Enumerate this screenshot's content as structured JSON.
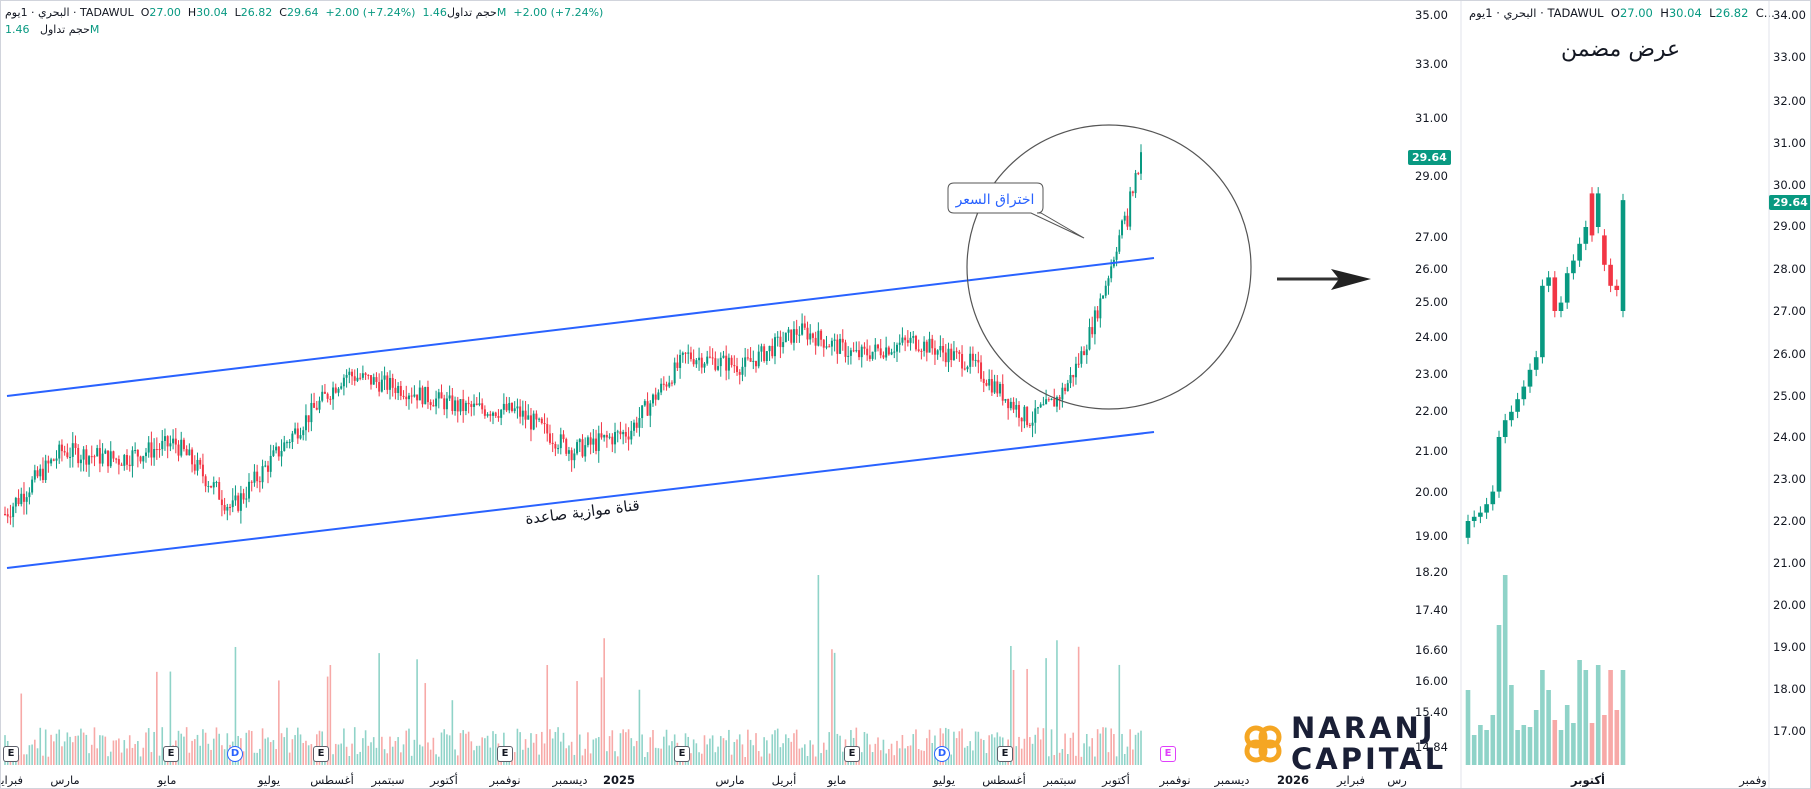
{
  "main_legend": {
    "symbol": "البحري · 1يوم · TADAWUL",
    "open_label": "O",
    "open": "27.00",
    "high_label": "H",
    "high": "30.04",
    "low_label": "L",
    "low": "26.82",
    "close_label": "C",
    "close": "29.64",
    "change": "+2.00 (+7.24%)",
    "volume_label": "حجم تداول",
    "volume_value": "1.46M",
    "volume_change": "+2.00 (+7.24%)"
  },
  "main_volume_line": {
    "label": "حجم تداول",
    "value": "1.46M"
  },
  "inset_legend": {
    "symbol": "البحري · 1يوم · TADAWUL",
    "open_label": "O",
    "open": "27.00",
    "high_label": "H",
    "high": "30.04",
    "low_label": "L",
    "low": "26.82",
    "close_label": "C..."
  },
  "inset_title": "عرض مضمن",
  "annotations": {
    "channel_label": "قناة موازية صاعدة",
    "breakout_label": "اختراق السعر"
  },
  "main_price_tag": "29.64",
  "inset_price_tag": "29.64",
  "main_y_ticks": [
    "35.00",
    "33.00",
    "31.00",
    "29.00",
    "27.00",
    "26.00",
    "25.00",
    "24.00",
    "23.00",
    "22.00",
    "21.00",
    "20.00",
    "19.00",
    "18.20",
    "17.40",
    "16.60",
    "16.00",
    "15.40",
    "14.84"
  ],
  "main_x_ticks": [
    "فبراير",
    "مارس",
    "مايو",
    "يوليو",
    "أغسطس",
    "سبتمبر",
    "أكتوبر",
    "نوفمبر",
    "ديسمبر",
    "2025",
    "مارس",
    "أبريل",
    "مايو",
    "يوليو",
    "أغسطس",
    "سبتمبر",
    "أكتوبر",
    "نوفمبر",
    "ديسمبر",
    "2026",
    "فبراير",
    "رس"
  ],
  "inset_y_ticks": [
    "34.00",
    "33.00",
    "32.00",
    "31.00",
    "30.00",
    "29.00",
    "28.00",
    "27.00",
    "26.00",
    "25.00",
    "24.00",
    "23.00",
    "22.00",
    "21.00",
    "20.00",
    "19.00",
    "18.00",
    "17.00"
  ],
  "inset_x_ticks": [
    "أكتوبر",
    "وفمبر"
  ],
  "event_markers": [
    "E",
    "E",
    "D",
    "E",
    "E",
    "E",
    "E",
    "D",
    "E",
    "E"
  ],
  "logo": {
    "line1": "NARANJ",
    "line2": "CAPITAL"
  },
  "colors": {
    "up": "#089981",
    "down": "#f23645",
    "line": "#2962ff",
    "vol_up": "#8fd3c8",
    "vol_down": "#f7a9a7"
  },
  "icons": [
    "arrow-right-icon",
    "naranj-logo-icon",
    "earnings-icon",
    "dividend-icon"
  ],
  "chart_data": {
    "type": "candlestick",
    "main_series_close_approx": [
      {
        "x": "2024-02",
        "y": 19.5
      },
      {
        "x": "2024-03",
        "y": 21.0
      },
      {
        "x": "2024-04",
        "y": 20.8
      },
      {
        "x": "2024-05",
        "y": 21.2
      },
      {
        "x": "2024-06",
        "y": 19.6
      },
      {
        "x": "2024-07",
        "y": 21.3
      },
      {
        "x": "2024-08",
        "y": 23.0
      },
      {
        "x": "2024-09",
        "y": 22.6
      },
      {
        "x": "2024-10",
        "y": 22.1
      },
      {
        "x": "2024-11",
        "y": 22.0
      },
      {
        "x": "2024-12",
        "y": 21.0
      },
      {
        "x": "2025-01",
        "y": 21.5
      },
      {
        "x": "2025-02",
        "y": 23.5
      },
      {
        "x": "2025-03",
        "y": 23.2
      },
      {
        "x": "2025-04",
        "y": 24.2
      },
      {
        "x": "2025-05",
        "y": 23.5
      },
      {
        "x": "2025-06",
        "y": 23.9
      },
      {
        "x": "2025-07",
        "y": 23.3
      },
      {
        "x": "2025-08",
        "y": 21.8
      },
      {
        "x": "2025-09",
        "y": 22.0
      },
      {
        "x": "2025-10",
        "y": 29.64
      }
    ],
    "channel": {
      "upper": [
        {
          "x": "2024-02",
          "y": 22.8
        },
        {
          "x": "2025-10",
          "y": 26.2
        }
      ],
      "lower": [
        {
          "x": "2024-02",
          "y": 19.0
        },
        {
          "x": "2025-10",
          "y": 21.5
        }
      ]
    },
    "inset_candles": [
      {
        "o": 21.6,
        "c": 22.0
      },
      {
        "o": 22.0,
        "c": 22.1
      },
      {
        "o": 22.1,
        "c": 22.2
      },
      {
        "o": 22.2,
        "c": 22.4
      },
      {
        "o": 22.4,
        "c": 22.7
      },
      {
        "o": 22.7,
        "c": 24.0
      },
      {
        "o": 24.0,
        "c": 24.4
      },
      {
        "o": 24.4,
        "c": 24.6
      },
      {
        "o": 24.6,
        "c": 24.9
      },
      {
        "o": 24.9,
        "c": 25.2
      },
      {
        "o": 25.2,
        "c": 25.6
      },
      {
        "o": 25.6,
        "c": 25.9
      },
      {
        "o": 25.9,
        "c": 27.6
      },
      {
        "o": 27.6,
        "c": 27.8
      },
      {
        "o": 27.8,
        "c": 27.0
      },
      {
        "o": 27.0,
        "c": 27.2
      },
      {
        "o": 27.2,
        "c": 27.9
      },
      {
        "o": 27.9,
        "c": 28.2
      },
      {
        "o": 28.2,
        "c": 28.6
      },
      {
        "o": 28.6,
        "c": 29.0
      },
      {
        "o": 29.8,
        "c": 28.8
      },
      {
        "o": 29.0,
        "c": 29.8
      },
      {
        "o": 28.8,
        "c": 28.1
      },
      {
        "o": 28.1,
        "c": 27.6
      },
      {
        "o": 27.6,
        "c": 27.5
      },
      {
        "o": 27.0,
        "c": 29.64
      }
    ]
  }
}
